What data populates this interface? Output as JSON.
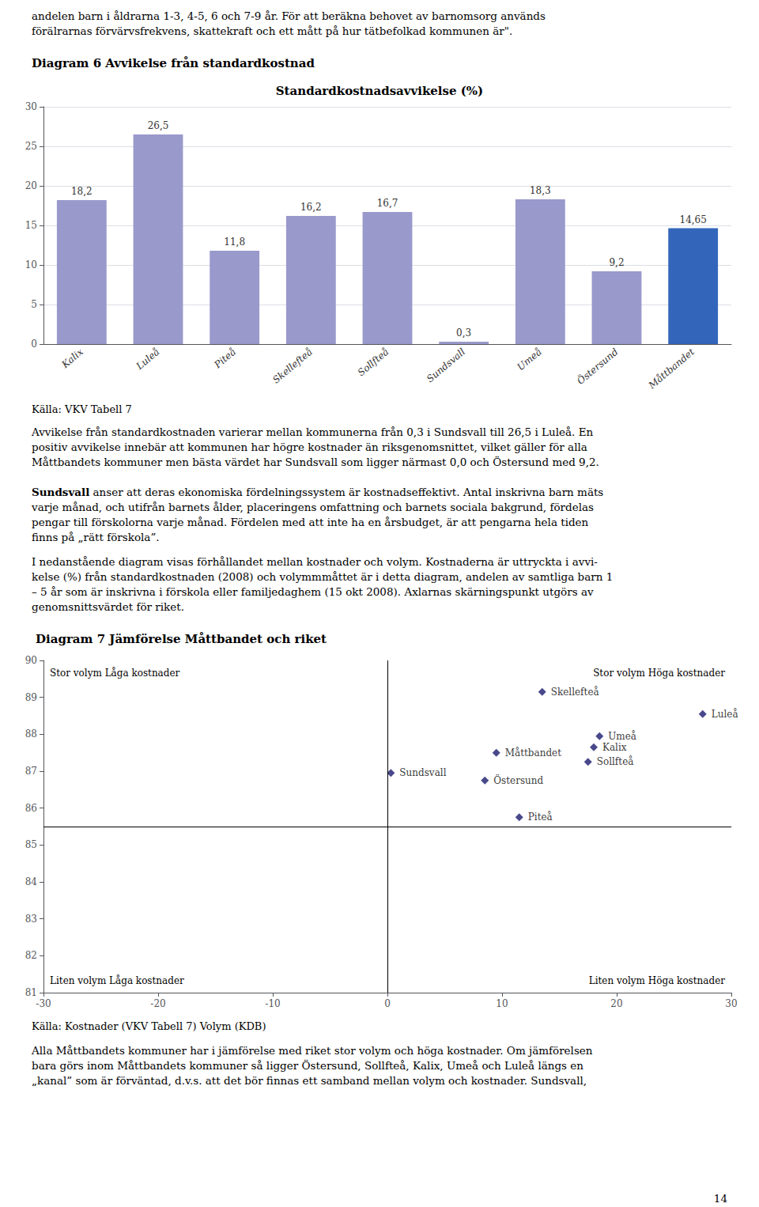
{
  "chart_data": [
    {
      "type": "bar",
      "title": "Standardkostnadsavvikelse (%)",
      "categories": [
        "Kalix",
        "Luleå",
        "Piteå",
        "Skellefteå",
        "Sollfteå",
        "Sundsvall",
        "Umeå",
        "Östersund",
        "Måttbandet"
      ],
      "values": [
        18.2,
        26.5,
        11.8,
        16.2,
        16.7,
        0.3,
        18.3,
        9.2,
        14.65
      ],
      "value_labels": [
        "18,2",
        "26,5",
        "11,8",
        "16,2",
        "16,7",
        "0,3",
        "18,3",
        "9,2",
        "14,65"
      ],
      "data_labels": true,
      "colors": [
        "#9999cc",
        "#9999cc",
        "#9999cc",
        "#9999cc",
        "#9999cc",
        "#9999cc",
        "#9999cc",
        "#9999cc",
        "#3366bb"
      ],
      "ylim": [
        0,
        30
      ],
      "yticks": [
        0,
        5,
        10,
        15,
        20,
        25,
        30
      ],
      "grid": true,
      "annotations": [
        "andelen barn i åldrarna 1-3, 4-5, 6 och 7-9 år. För att beräkna behovet av barnomsorg används\nförälrarnas förvärvsfrekvens, skattekraft och ett mått på hur tätbefolkad kommunen är\".",
        "Diagram 6 Avvikelse från standardkostnad",
        "Källa: VKV Tabell 7",
        "Avvikelse från standardkostnaden varierar mellan kommunerna från 0,3 i Sundsvall till 26,5 i Luleå. En\npositiv avvikelse innebär att kommunen har högre kostnader än riksgenomsnittet, vilket gäller för alla\nMåttbandets kommuner men bästa värdet har Sundsvall som ligger närmast 0,0 och Östersund med 9,2.",
        "Sundsvall anser att deras ekonomiska fördelningssystem är kostnadseffektivt. Antal inskrivna barn mäts\nvarje månad, och utifrån barnets ålder, placeringens omfattning och barnets sociala bakgrund, fördelas\npengar till förskolorna varje månad. Fördelen med att inte ha en årsbudget, är att pengarna hela tiden\nfinns på „rätt förskola”.",
        "I nedanstående diagram visas förhållandet mellan kostnader och volym. Kostnaderna är uttryckta i avvi-\nkelse (%) från standardkostnaden (2008) och volymmmåttet är i detta diagram, andelen av samtliga barn 1\n– 5 år som är inskrivna i förskola eller familjedaghem (15 okt 2008). Axlarnas skärningspunkt utgörs av\ngenomsnittsvärdet för riket."
      ]
    },
    {
      "type": "scatter",
      "title": "Diagram 7 Jämförelse Måttbandet och riket",
      "x": [
        18.0,
        27.5,
        11.5,
        13.5,
        17.5,
        0.3,
        18.5,
        8.5,
        9.5
      ],
      "values": [
        87.65,
        88.55,
        85.75,
        89.15,
        87.25,
        86.95,
        87.95,
        86.75,
        87.5
      ],
      "labels": [
        "Kalix",
        "Luleå",
        "Piteå",
        "Skellefteå",
        "Sollfteå",
        "Sundsvall",
        "Umeå",
        "Östersund",
        "Måttbandet"
      ],
      "color": "#1a1a6e",
      "marker": "diamond",
      "xlim": [
        -30,
        30
      ],
      "xticks": [
        -30,
        -20,
        -10,
        0,
        10,
        20,
        30
      ],
      "ylim": [
        81,
        90
      ],
      "yticks": [
        81,
        82,
        83,
        84,
        85,
        86,
        87,
        88,
        89,
        90
      ],
      "reference_lines": {
        "x": 0,
        "y": 85.5
      },
      "grid": false,
      "annotations": [
        "Stor volym Låga kostnader",
        "Stor volym Höga kostnader",
        "Liten volym Låga kostnader",
        "Liten volym Höga kostnader",
        "Källa: Kostnader (VKV Tabell 7) Volym (KDB)",
        "Alla Måttbandets kommuner har i jämförelse med riket stor volym och höga kostnader. Om jämförelsen\nbara görs inom Måttbandets kommuner så ligger Östersund, Sollfteå, Kalix, Umeå och Luleå längs en\n„kanal” som är förväntad, d.v.s. att det bör finnas ett samband mellan volym och kostnader. Sundsvall,",
        "14"
      ]
    }
  ]
}
